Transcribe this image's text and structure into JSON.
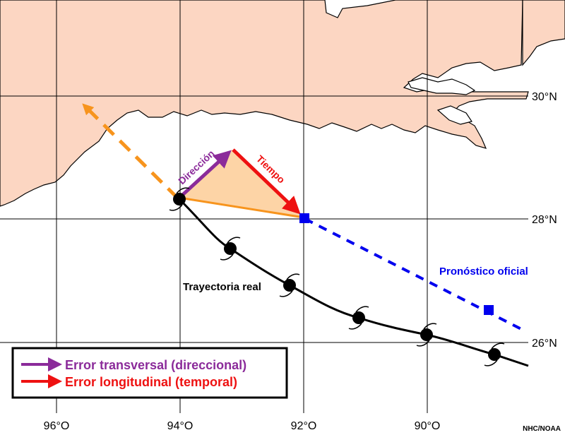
{
  "map": {
    "colors": {
      "land": "#fcd6c2",
      "coast": "#000000",
      "grid": "#000000",
      "actual_track": "#000000",
      "forecast": "#0000ee",
      "direction": "#8b2b9a",
      "time": "#ee1111",
      "extrapolation": "#f7941d",
      "error_triangle": "#fdd4a6"
    },
    "latitude_labels": [
      "30°N",
      "28°N",
      "26°N"
    ],
    "longitude_labels": [
      "96°O",
      "94°O",
      "92°O",
      "90°O"
    ],
    "labels": {
      "direction": "Dirección",
      "time": "Tiempo",
      "actual_track": "Trayectoria real",
      "official_forecast": "Pronóstico oficial"
    },
    "legend": {
      "items": [
        {
          "label": "Error transversal (direccional)",
          "color": "#8b2b9a"
        },
        {
          "label": "Error longitudinal (temporal)",
          "color": "#ee1111"
        }
      ]
    },
    "credit": "NHC/NOAA",
    "storm_symbol_icon": "hurricane-symbol-icon",
    "forecast_marker_icon": "blue-square-icon"
  }
}
